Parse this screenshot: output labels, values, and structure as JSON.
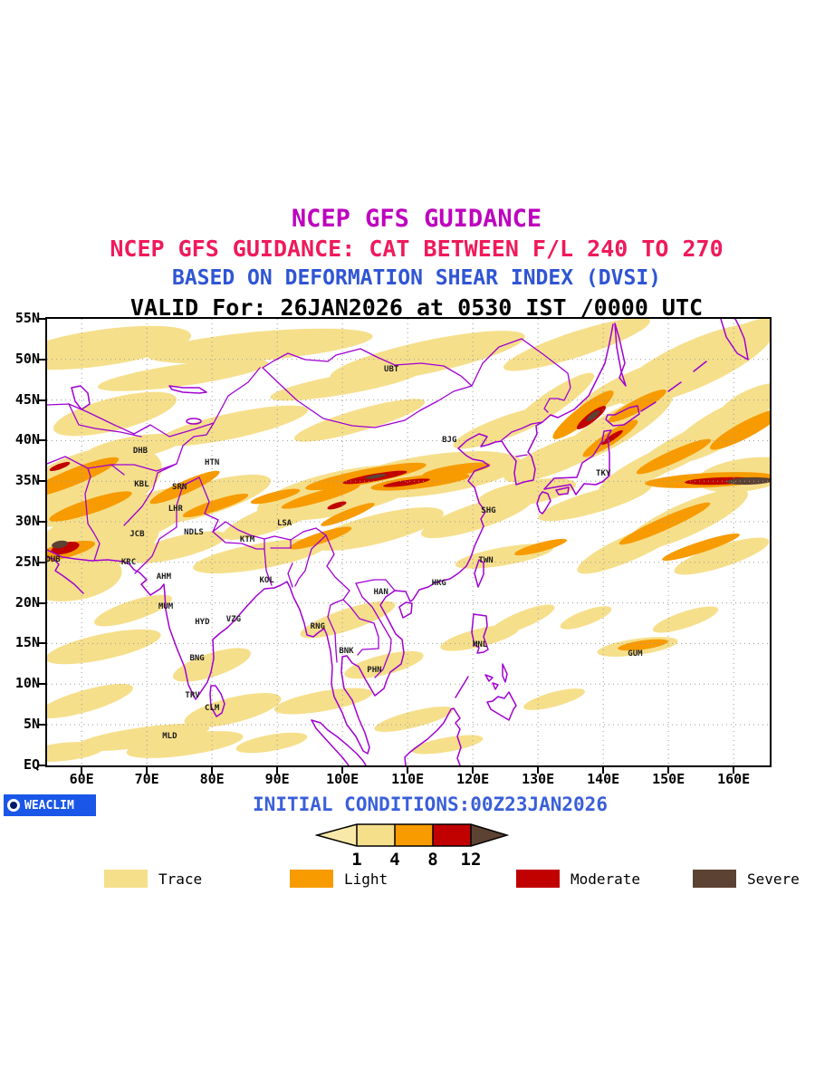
{
  "titles": {
    "line1": "NCEP GFS GUIDANCE",
    "line2": "NCEP GFS GUIDANCE: CAT BETWEEN F/L 240 TO 270",
    "line3": "BASED ON DEFORMATION SHEAR INDEX (DVSI)",
    "line4": "VALID For: 26JAN2026 at 0530 IST /0000 UTC"
  },
  "colors": {
    "trace": "#F6DF8B",
    "light": "#F79B00",
    "moderate": "#C10000",
    "severe": "#5C4233",
    "line": "#A000D2",
    "grid": "#999999",
    "title_magenta": "#BE00BE",
    "title_pink": "#EF1A5B",
    "title_blue": "#2F55D4",
    "init_blue": "#3A5FD9",
    "logo_bg": "#1A57E8"
  },
  "map": {
    "lat_ticks": [
      {
        "label": "55N",
        "lat": 55
      },
      {
        "label": "50N",
        "lat": 50
      },
      {
        "label": "45N",
        "lat": 45
      },
      {
        "label": "40N",
        "lat": 40
      },
      {
        "label": "35N",
        "lat": 35
      },
      {
        "label": "30N",
        "lat": 30
      },
      {
        "label": "25N",
        "lat": 25
      },
      {
        "label": "20N",
        "lat": 20
      },
      {
        "label": "15N",
        "lat": 15
      },
      {
        "label": "10N",
        "lat": 10
      },
      {
        "label": "5N",
        "lat": 5
      },
      {
        "label": "EQ",
        "lat": 0
      }
    ],
    "lon_ticks": [
      {
        "label": "60E",
        "lon": 60
      },
      {
        "label": "70E",
        "lon": 70
      },
      {
        "label": "80E",
        "lon": 80
      },
      {
        "label": "90E",
        "lon": 90
      },
      {
        "label": "100E",
        "lon": 100
      },
      {
        "label": "110E",
        "lon": 110
      },
      {
        "label": "120E",
        "lon": 120
      },
      {
        "label": "130E",
        "lon": 130
      },
      {
        "label": "140E",
        "lon": 140
      },
      {
        "label": "150E",
        "lon": 150
      },
      {
        "label": "160E",
        "lon": 160
      }
    ],
    "stations": [
      {
        "id": "UBT",
        "lon": 107.5,
        "lat": 48.7
      },
      {
        "id": "BJG",
        "lon": 116.4,
        "lat": 40.0
      },
      {
        "id": "TKY",
        "lon": 140.0,
        "lat": 35.9
      },
      {
        "id": "DHB",
        "lon": 69.0,
        "lat": 38.7
      },
      {
        "id": "HTN",
        "lon": 80.0,
        "lat": 37.2
      },
      {
        "id": "KBL",
        "lon": 69.2,
        "lat": 34.6
      },
      {
        "id": "SRN",
        "lon": 75.0,
        "lat": 34.2
      },
      {
        "id": "LHR",
        "lon": 74.4,
        "lat": 31.6
      },
      {
        "id": "JCB",
        "lon": 68.5,
        "lat": 28.4
      },
      {
        "id": "NDLS",
        "lon": 77.2,
        "lat": 28.7
      },
      {
        "id": "KTM",
        "lon": 85.4,
        "lat": 27.8
      },
      {
        "id": "LSA",
        "lon": 91.1,
        "lat": 29.8
      },
      {
        "id": "SHG",
        "lon": 122.4,
        "lat": 31.3
      },
      {
        "id": "DUB",
        "lon": 55.6,
        "lat": 25.3
      },
      {
        "id": "KRC",
        "lon": 67.2,
        "lat": 25.0
      },
      {
        "id": "AHM",
        "lon": 72.6,
        "lat": 23.2
      },
      {
        "id": "TWN",
        "lon": 122.0,
        "lat": 25.2
      },
      {
        "id": "MUM",
        "lon": 72.9,
        "lat": 19.5
      },
      {
        "id": "HYD",
        "lon": 78.5,
        "lat": 17.6
      },
      {
        "id": "VZG",
        "lon": 83.3,
        "lat": 17.9
      },
      {
        "id": "KOL",
        "lon": 88.4,
        "lat": 22.8
      },
      {
        "id": "HAN",
        "lon": 105.9,
        "lat": 21.3
      },
      {
        "id": "HKG",
        "lon": 114.8,
        "lat": 22.4
      },
      {
        "id": "RNG",
        "lon": 96.2,
        "lat": 17.0
      },
      {
        "id": "BNG",
        "lon": 77.7,
        "lat": 13.1
      },
      {
        "id": "BNK",
        "lon": 100.6,
        "lat": 14.0
      },
      {
        "id": "MNL",
        "lon": 121.1,
        "lat": 14.8
      },
      {
        "id": "PHN",
        "lon": 104.9,
        "lat": 11.7
      },
      {
        "id": "GUM",
        "lon": 144.9,
        "lat": 13.7
      },
      {
        "id": "TRV",
        "lon": 77.0,
        "lat": 8.6
      },
      {
        "id": "CLM",
        "lon": 80.0,
        "lat": 7.0
      },
      {
        "id": "MLD",
        "lon": 73.5,
        "lat": 3.6
      }
    ]
  },
  "footer": {
    "logo_text": "WEACLIM",
    "initial_conditions": "INITIAL CONDITIONS:00Z23JAN2026"
  },
  "scale": {
    "ticks": [
      "1",
      "4",
      "8",
      "12"
    ],
    "segment_colors": [
      "#F9E9A8",
      "#F6DF8B",
      "#F79B00",
      "#C10000",
      "#5C4233"
    ]
  },
  "legend": [
    {
      "label": "Trace",
      "color": "#F6DF8B"
    },
    {
      "label": "Light",
      "color": "#F79B00"
    },
    {
      "label": "Moderate",
      "color": "#C10000"
    },
    {
      "label": "Severe",
      "color": "#5C4233"
    }
  ]
}
